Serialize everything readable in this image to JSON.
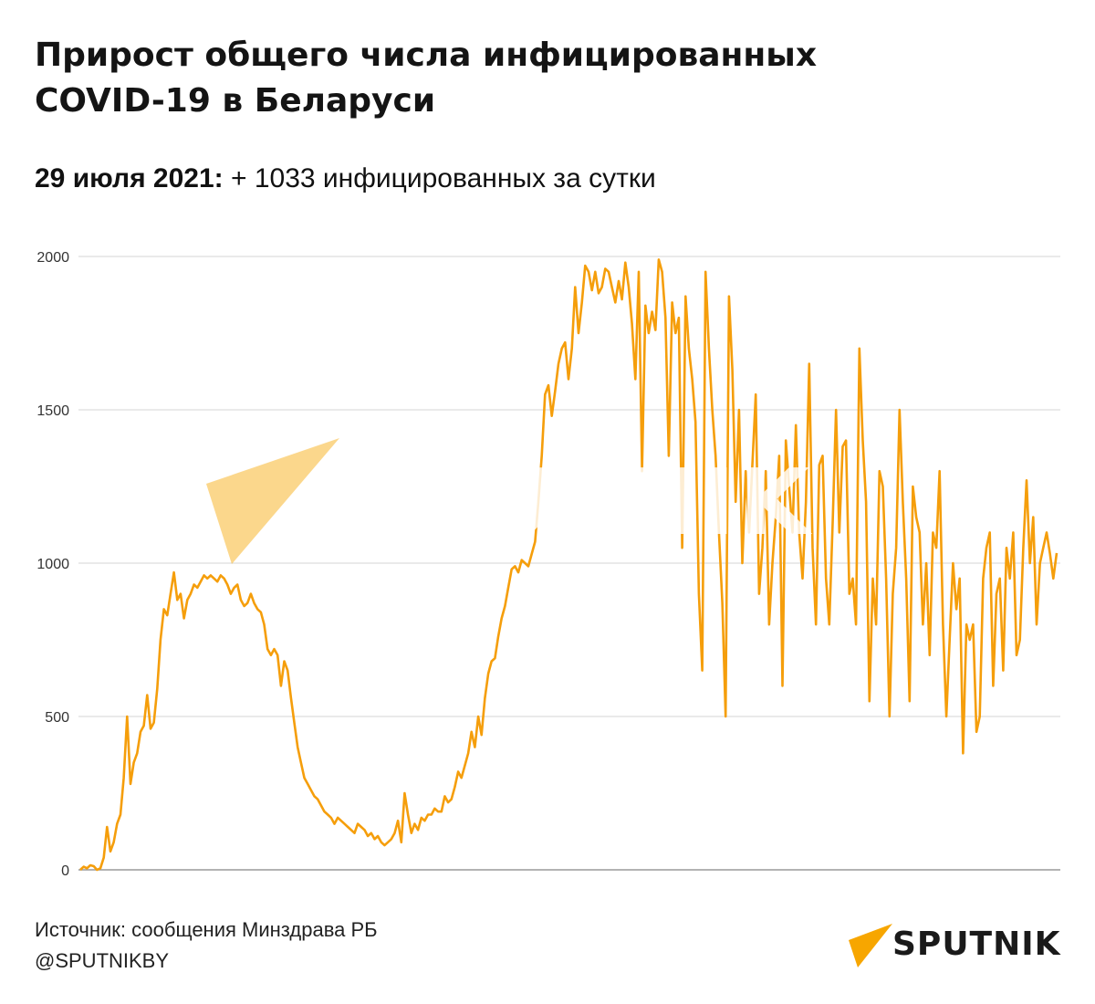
{
  "header": {
    "title_line1": "Прирост общего числа инфицированных",
    "title_line2": "COVID-19 в Беларуси",
    "subtitle_date": "29 июля 2021:",
    "subtitle_text": " + 1033 инфицированных за сутки"
  },
  "footer": {
    "source": "Источник: сообщения Минздрава РБ",
    "handle": "@SPUTNIKBY"
  },
  "branding": {
    "logo_text": "SPUTNIK",
    "watermark_text": "SPUTNIK",
    "logo_color": "#f7a600"
  },
  "chart_data": {
    "type": "line",
    "title": "",
    "xlabel": "",
    "ylabel": "",
    "ylim": [
      0,
      2000
    ],
    "yticks": [
      0,
      500,
      1000,
      1500,
      2000
    ],
    "grid": true,
    "line_color": "#f59e0b",
    "series": [
      {
        "values": [
          0,
          10,
          5,
          15,
          12,
          0,
          5,
          40,
          140,
          60,
          90,
          150,
          180,
          300,
          500,
          280,
          350,
          380,
          450,
          470,
          570,
          460,
          480,
          590,
          750,
          850,
          830,
          900,
          970,
          880,
          900,
          820,
          880,
          900,
          930,
          920,
          940,
          960,
          950,
          960,
          950,
          940,
          960,
          950,
          930,
          900,
          920,
          930,
          880,
          860,
          870,
          900,
          870,
          850,
          840,
          800,
          720,
          700,
          720,
          700,
          600,
          680,
          650,
          560,
          480,
          400,
          350,
          300,
          280,
          260,
          240,
          230,
          210,
          190,
          180,
          170,
          150,
          170,
          160,
          150,
          140,
          130,
          120,
          150,
          140,
          130,
          110,
          120,
          100,
          110,
          90,
          80,
          90,
          100,
          120,
          160,
          90,
          250,
          180,
          120,
          150,
          130,
          170,
          160,
          180,
          180,
          200,
          190,
          190,
          240,
          220,
          230,
          270,
          320,
          300,
          340,
          380,
          450,
          400,
          500,
          440,
          560,
          640,
          680,
          690,
          760,
          820,
          860,
          920,
          980,
          990,
          970,
          1010,
          1000,
          990,
          1030,
          1070,
          1200,
          1350,
          1550,
          1580,
          1480,
          1560,
          1650,
          1700,
          1720,
          1600,
          1700,
          1900,
          1750,
          1850,
          1970,
          1950,
          1890,
          1950,
          1880,
          1900,
          1960,
          1950,
          1900,
          1850,
          1920,
          1860,
          1980,
          1900,
          1780,
          1600,
          1950,
          1300,
          1840,
          1750,
          1820,
          1760,
          1990,
          1950,
          1800,
          1350,
          1850,
          1750,
          1800,
          1050,
          1870,
          1700,
          1600,
          1460,
          900,
          650,
          1950,
          1700,
          1500,
          1350,
          1100,
          870,
          500,
          1870,
          1630,
          1200,
          1500,
          1000,
          1300,
          1100,
          1320,
          1550,
          900,
          1050,
          1300,
          800,
          1000,
          1150,
          1350,
          600,
          1400,
          1250,
          1100,
          1450,
          1100,
          950,
          1200,
          1650,
          1050,
          800,
          1320,
          1350,
          950,
          800,
          1130,
          1500,
          1100,
          1380,
          1400,
          900,
          950,
          800,
          1700,
          1400,
          1200,
          550,
          950,
          800,
          1300,
          1250,
          950,
          500,
          900,
          1050,
          1500,
          1200,
          950,
          550,
          1250,
          1150,
          1100,
          800,
          1000,
          700,
          1100,
          1050,
          1300,
          800,
          500,
          750,
          1000,
          850,
          950,
          380,
          800,
          750,
          800,
          450,
          500,
          950,
          1050,
          1100,
          600,
          900,
          950,
          650,
          1050,
          950,
          1100,
          700,
          750,
          1050,
          1270,
          1000,
          1150,
          800,
          1000,
          1050,
          1100,
          1030,
          950,
          1033
        ]
      }
    ]
  }
}
